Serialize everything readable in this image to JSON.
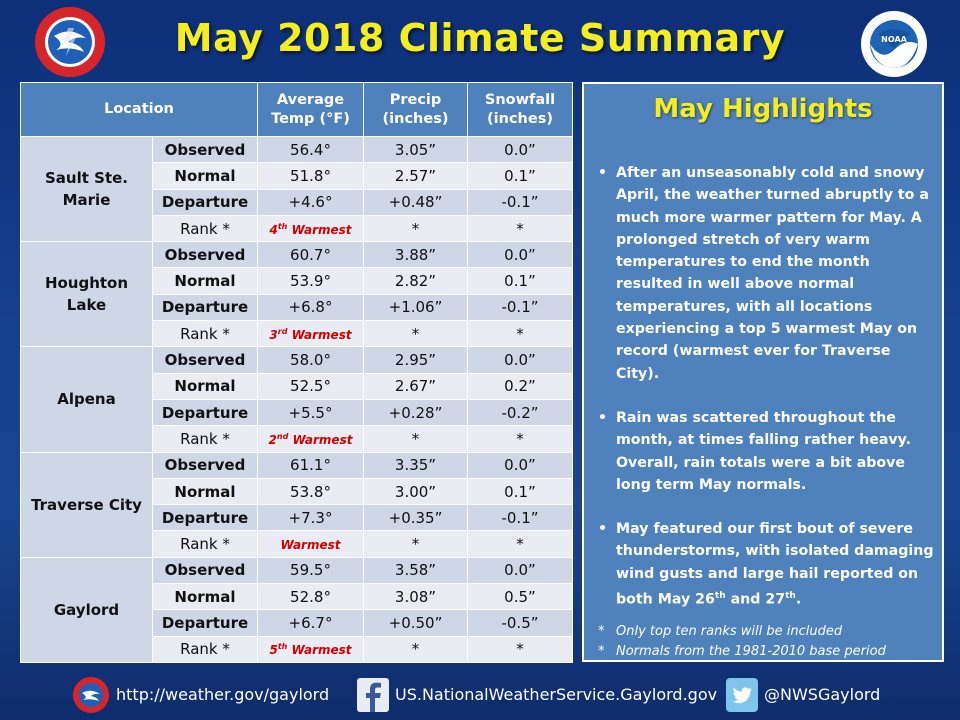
{
  "title": "May 2018 Climate Summary",
  "table": {
    "headers": {
      "location": "Location",
      "temp_line1": "Average",
      "temp_line2": "Temp (°F)",
      "precip_line1": "Precip",
      "precip_line2": "(inches)",
      "snow_line1": "Snowfall",
      "snow_line2": "(inches)"
    },
    "row_labels": [
      "Observed",
      "Normal",
      "Departure",
      "Rank *"
    ],
    "locations": [
      {
        "name_line1": "Sault Ste. Marie",
        "name_line2": "",
        "observed": [
          "56.4°",
          "3.05”",
          "0.0”"
        ],
        "normal": [
          "51.8°",
          "2.57”",
          "0.1”"
        ],
        "departure": [
          "+4.6°",
          "+0.48”",
          "-0.1”"
        ],
        "rank": [
          "4",
          "th",
          " Warmest",
          "*",
          "*"
        ]
      },
      {
        "name_line1": "Houghton",
        "name_line2": "Lake",
        "observed": [
          "60.7°",
          "3.88”",
          "0.0”"
        ],
        "normal": [
          "53.9°",
          "2.82”",
          "0.1”"
        ],
        "departure": [
          "+6.8°",
          "+1.06”",
          "-0.1”"
        ],
        "rank": [
          "3",
          "rd",
          " Warmest",
          "*",
          "*"
        ]
      },
      {
        "name_line1": "Alpena",
        "name_line2": "",
        "observed": [
          "58.0°",
          "2.95”",
          "0.0”"
        ],
        "normal": [
          "52.5°",
          "2.67”",
          "0.2”"
        ],
        "departure": [
          "+5.5°",
          "+0.28”",
          "-0.2”"
        ],
        "rank": [
          "2",
          "nd",
          " Warmest",
          "*",
          "*"
        ]
      },
      {
        "name_line1": "Traverse City",
        "name_line2": "",
        "observed": [
          "61.1°",
          "3.35”",
          "0.0”"
        ],
        "normal": [
          "53.8°",
          "3.00”",
          "0.1”"
        ],
        "departure": [
          "+7.3°",
          "+0.35”",
          "-0.1”"
        ],
        "rank": [
          "",
          "",
          "Warmest",
          "*",
          "*"
        ]
      },
      {
        "name_line1": "Gaylord",
        "name_line2": "",
        "observed": [
          "59.5°",
          "3.58”",
          "0.0”"
        ],
        "normal": [
          "52.8°",
          "3.08”",
          "0.5”"
        ],
        "departure": [
          "+6.7°",
          "+0.50”",
          "-0.5”"
        ],
        "rank": [
          "5",
          "th",
          " Warmest",
          "*",
          "*"
        ]
      }
    ]
  },
  "highlights": {
    "title": "May Highlights",
    "b1": "After an unseasonably cold and snowy April, the weather turned abruptly to a much more warmer pattern for May.  A prolonged stretch of very warm temperatures  to end the month resulted in well above normal temperatures, with all locations experiencing a top 5 warmest May on record (warmest ever for Traverse City).",
    "b2": "Rain was scattered throughout the month, at times falling rather heavy.  Overall, rain totals were a bit above long term May normals.",
    "b3_pre": "May featured our first bout of severe thunderstorms, with isolated damaging wind gusts and large hail reported on both May 26",
    "b3_sup1": "th",
    "b3_mid": " and 27",
    "b3_sup2": "th",
    "b3_post": ".",
    "note1": "Only top ten ranks will be included",
    "note2": "Normals from the 1981-2010 base period"
  },
  "footer": {
    "website": "http://weather.gov/gaylord",
    "facebook": "US.NationalWeatherService.Gaylord.gov",
    "twitter": "@NWSGaylord",
    "facebook_icon": "facebook-icon",
    "twitter_icon": "twitter-bird-icon"
  },
  "logo_text": {
    "nws": "NATIONAL WEATHER SERVICE",
    "noaa": "NOAA"
  },
  "colors": {
    "title": "#f5ee1f",
    "header": "#4f81bd",
    "rank": "#d60000"
  }
}
